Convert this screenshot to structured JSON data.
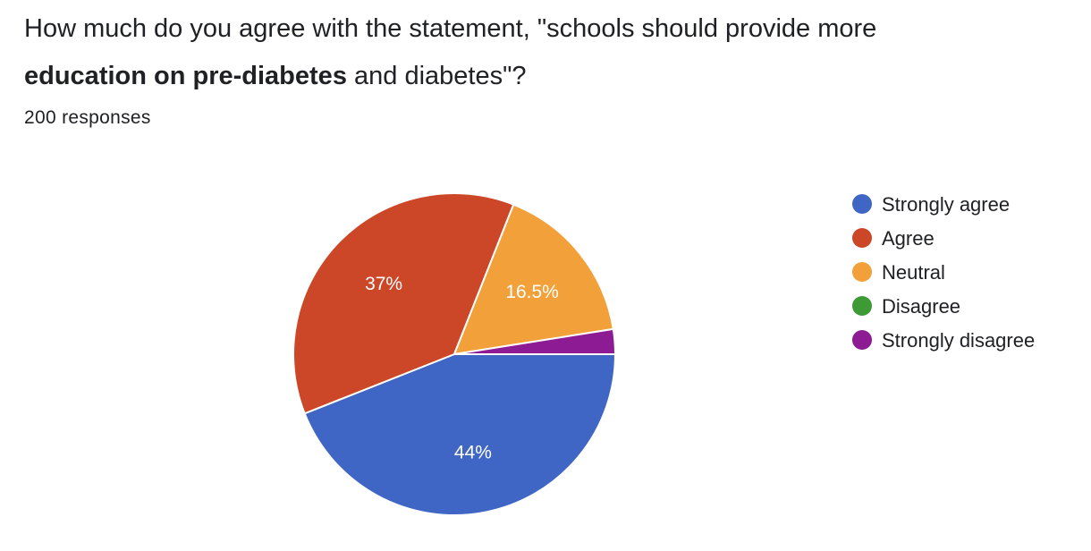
{
  "question": {
    "part1": "How much do you agree with the statement, \"schools should provide more",
    "bold": "education on pre-diabetes",
    "part2": " and diabetes\"?"
  },
  "responses_label": "200 responses",
  "chart_data": {
    "type": "pie",
    "categories": [
      "Strongly agree",
      "Agree",
      "Neutral",
      "Disagree",
      "Strongly disagree"
    ],
    "values": [
      44,
      37,
      16.5,
      0,
      2.5
    ],
    "value_labels": [
      "44%",
      "37%",
      "16.5%",
      "",
      ""
    ],
    "colors": [
      "#4066c5",
      "#cc4628",
      "#f1a03a",
      "#3d9a34",
      "#8d1b93"
    ],
    "legend_position": "right"
  }
}
